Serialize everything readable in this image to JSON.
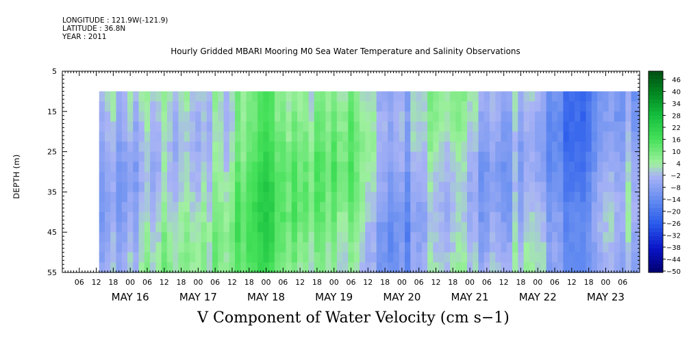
{
  "header": {
    "longitude": "LONGITUDE : 121.9W(-121.9)",
    "latitude": "LATITUDE : 36.8N",
    "year": "YEAR : 2011"
  },
  "chart_data": {
    "type": "heatmap",
    "title": "Hourly Gridded MBARI Mooring M0 Sea Water Temperature and Salinity Observations",
    "xlabel": "V Component of Water Velocity (cm s−1)",
    "ylabel": "DEPTH (m)",
    "ylim": [
      5,
      55
    ],
    "y_inverted": true,
    "y_ticks": [
      5,
      15,
      25,
      35,
      45,
      55
    ],
    "x_start": "2011-05-15 00:00",
    "x_end": "2011-05-23 12:00",
    "x_hour_ticks": [
      "06",
      "12",
      "18",
      "00",
      "06",
      "12",
      "18",
      "00",
      "06",
      "12",
      "18",
      "00",
      "06",
      "12",
      "18",
      "00",
      "06",
      "12",
      "18",
      "00",
      "06",
      "12",
      "18",
      "00",
      "06",
      "12",
      "18",
      "00",
      "06",
      "12",
      "18",
      "00",
      "06"
    ],
    "x_day_labels": [
      "MAY 16",
      "MAY 17",
      "MAY 18",
      "MAY 19",
      "MAY 20",
      "MAY 21",
      "MAY 22",
      "MAY 23"
    ],
    "data_depth_range": [
      10,
      55
    ],
    "data_time_range": [
      "2011-05-15 13:00",
      "2011-05-23 12:00"
    ],
    "colorbar": {
      "min": -50,
      "max": 50,
      "tick_labels": [
        "46",
        "40",
        "34",
        "28",
        "22",
        "16",
        "10",
        "4",
        "−2",
        "−8",
        "−14",
        "−20",
        "−26",
        "−32",
        "−38",
        "−44",
        "−50"
      ]
    },
    "v_velocity_profile": {
      "description_units": "cm s-1, approximate depth-mean V component by date-time",
      "times": [
        "05-15 18:00",
        "05-16 06:00",
        "05-16 18:00",
        "05-17 06:00",
        "05-17 18:00",
        "05-18 06:00",
        "05-18 18:00",
        "05-19 06:00",
        "05-19 18:00",
        "05-20 06:00",
        "05-20 18:00",
        "05-21 06:00",
        "05-21 18:00",
        "05-22 06:00",
        "05-22 18:00",
        "05-23 06:00"
      ],
      "values": [
        -4,
        2,
        -2,
        8,
        14,
        10,
        14,
        4,
        -6,
        -4,
        2,
        -4,
        -4,
        -14,
        -12,
        -8
      ]
    }
  }
}
